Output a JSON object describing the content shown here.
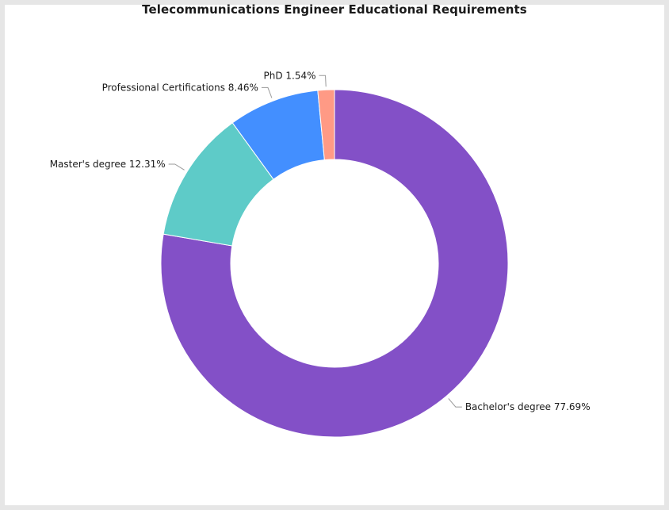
{
  "chart_data": {
    "type": "pie",
    "title": "Telecommunications Engineer Educational Requirements",
    "donut": true,
    "slices": [
      {
        "label": "Bachelor's degree",
        "value": 77.69,
        "display": "Bachelor's degree 77.69%",
        "color": "#8350c7"
      },
      {
        "label": "Master's degree",
        "value": 12.31,
        "display": "Master's degree 12.31%",
        "color": "#5ecbc8"
      },
      {
        "label": "Professional Certifications",
        "value": 8.46,
        "display": "Professional Certifications 8.46%",
        "color": "#438fff"
      },
      {
        "label": "PhD",
        "value": 1.54,
        "display": "PhD 1.54%",
        "color": "#ff9a85"
      }
    ]
  }
}
